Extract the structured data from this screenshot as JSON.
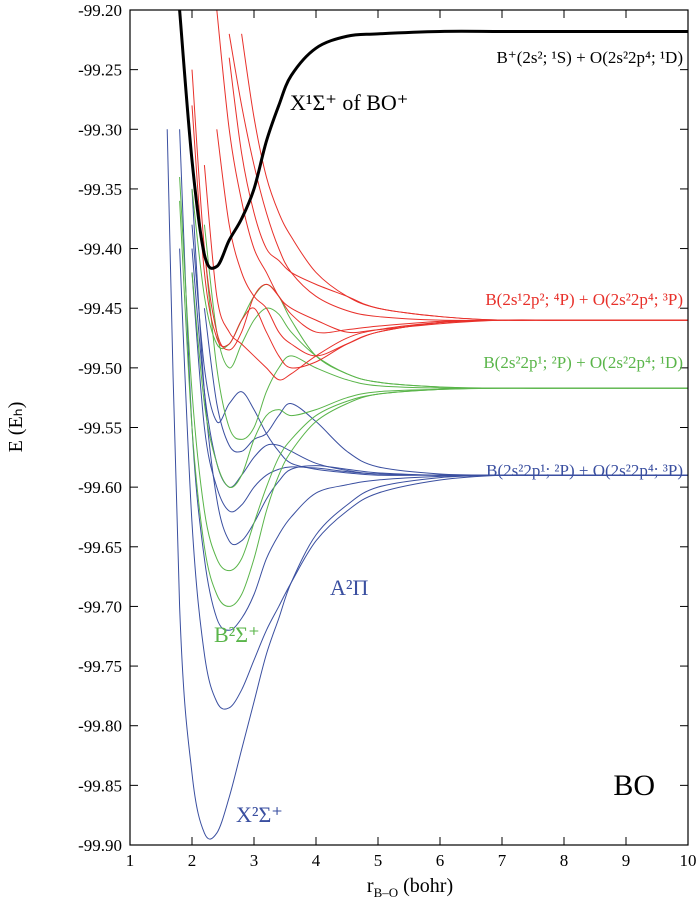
{
  "chart_data": {
    "type": "line",
    "xlabel": {
      "main": "r",
      "sub": "B–O",
      "unit": "(bohr)"
    },
    "ylabel": "E (Eₕ)",
    "xlim": [
      1,
      10
    ],
    "xticks": [
      1,
      2,
      3,
      4,
      5,
      6,
      7,
      8,
      9,
      10
    ],
    "ylim": [
      -99.9,
      -99.2
    ],
    "yticks": [
      {
        "value": -99.9,
        "label": "-99.90"
      },
      -99.85,
      {
        "value": -99.8,
        "label": "-99.80"
      },
      -99.75,
      {
        "value": -99.7,
        "label": "-99.70"
      },
      -99.65,
      {
        "value": -99.6,
        "label": "-99.60"
      },
      -99.55,
      {
        "value": -99.5,
        "label": "-99.50"
      },
      -99.45,
      {
        "value": -99.4,
        "label": "-99.40"
      },
      -99.35,
      {
        "value": -99.3,
        "label": "-99.30"
      },
      -99.25,
      {
        "value": -99.2,
        "label": "-99.20"
      }
    ],
    "x": [
      1.6,
      1.8,
      2.0,
      2.2,
      2.4,
      2.6,
      2.8,
      3.0,
      3.2,
      3.4,
      3.6,
      4.0,
      4.5,
      5,
      6,
      7,
      8,
      10
    ],
    "series": [
      {
        "color": "#3a4fa0",
        "values": [
          -99.3,
          -99.7,
          -99.84,
          -99.89,
          -99.89,
          -99.86,
          -99.82,
          -99.78,
          -99.74,
          -99.71,
          -99.68,
          -99.64,
          -99.615,
          -99.6,
          -99.592,
          -99.59,
          -99.59,
          -99.59
        ]
      },
      {
        "color": "#3a4fa0",
        "values": [
          null,
          -99.4,
          -99.63,
          -99.74,
          -99.78,
          -99.785,
          -99.77,
          -99.745,
          -99.72,
          -99.7,
          -99.68,
          -99.645,
          -99.62,
          -99.605,
          -99.594,
          -99.59,
          -99.59,
          -99.59
        ]
      },
      {
        "color": "#3a4fa0",
        "values": [
          null,
          -99.3,
          -99.55,
          -99.66,
          -99.71,
          -99.72,
          -99.71,
          -99.69,
          -99.66,
          -99.64,
          -99.625,
          -99.605,
          -99.598,
          -99.594,
          -99.591,
          -99.59,
          -99.59,
          -99.59
        ]
      },
      {
        "color": "#3a4fa0",
        "values": [
          null,
          null,
          -99.35,
          -99.52,
          -99.61,
          -99.645,
          -99.645,
          -99.63,
          -99.61,
          -99.595,
          -99.585,
          -99.582,
          -99.585,
          -99.588,
          -99.59,
          -99.59,
          -99.59,
          -99.59
        ]
      },
      {
        "color": "#3a4fa0",
        "values": [
          null,
          null,
          -99.42,
          -99.55,
          -99.6,
          -99.62,
          -99.615,
          -99.6,
          -99.59,
          -99.585,
          -99.583,
          -99.584,
          -99.587,
          -99.589,
          -99.59,
          -99.59,
          -99.59,
          -99.59
        ]
      },
      {
        "color": "#3a4fa0",
        "values": [
          null,
          null,
          -99.38,
          -99.5,
          -99.545,
          -99.53,
          -99.52,
          -99.535,
          -99.555,
          -99.57,
          -99.58,
          -99.585,
          -99.588,
          -99.59,
          -99.59,
          -99.59,
          -99.59,
          -99.59
        ]
      },
      {
        "color": "#3a4fa0",
        "values": [
          null,
          null,
          null,
          -99.45,
          -99.53,
          -99.565,
          -99.57,
          -99.56,
          -99.555,
          -99.54,
          -99.53,
          -99.545,
          -99.57,
          -99.583,
          -99.589,
          -99.59,
          -99.59,
          -99.59
        ]
      },
      {
        "color": "#3a4fa0",
        "values": [
          null,
          null,
          -99.4,
          -99.52,
          -99.58,
          -99.6,
          -99.59,
          -99.575,
          -99.565,
          -99.565,
          -99.57,
          -99.58,
          -99.586,
          -99.589,
          -99.59,
          -99.59,
          -99.59,
          -99.59
        ]
      },
      {
        "color": "#5ab54a",
        "values": [
          null,
          -99.36,
          -99.55,
          -99.65,
          -99.69,
          -99.7,
          -99.69,
          -99.66,
          -99.62,
          -99.59,
          -99.57,
          -99.545,
          -99.53,
          -99.522,
          -99.518,
          -99.517,
          -99.517,
          -99.517
        ]
      },
      {
        "color": "#5ab54a",
        "values": [
          null,
          -99.34,
          -99.52,
          -99.62,
          -99.66,
          -99.67,
          -99.66,
          -99.63,
          -99.6,
          -99.575,
          -99.56,
          -99.54,
          -99.528,
          -99.522,
          -99.518,
          -99.517,
          -99.517,
          -99.517
        ]
      },
      {
        "color": "#5ab54a",
        "values": [
          null,
          null,
          -99.42,
          -99.53,
          -99.58,
          -99.6,
          -99.59,
          -99.56,
          -99.54,
          -99.535,
          -99.54,
          -99.535,
          -99.525,
          -99.52,
          -99.518,
          -99.517,
          -99.517,
          -99.517
        ]
      },
      {
        "color": "#5ab54a",
        "values": [
          null,
          null,
          -99.35,
          -99.44,
          -99.48,
          -99.48,
          -99.46,
          -99.44,
          -99.43,
          -99.44,
          -99.46,
          -99.49,
          -99.505,
          -99.512,
          -99.516,
          -99.517,
          -99.517,
          -99.517
        ]
      },
      {
        "color": "#5ab54a",
        "values": [
          null,
          null,
          null,
          -99.4,
          -99.5,
          -99.55,
          -99.56,
          -99.55,
          -99.52,
          -99.5,
          -99.49,
          -99.5,
          -99.51,
          -99.515,
          -99.517,
          -99.517,
          -99.517,
          -99.517
        ]
      },
      {
        "color": "#5ab54a",
        "values": [
          null,
          null,
          null,
          -99.38,
          -99.47,
          -99.5,
          -99.48,
          -99.46,
          -99.45,
          -99.455,
          -99.47,
          -99.49,
          -99.505,
          -99.512,
          -99.516,
          -99.517,
          -99.517,
          -99.517
        ]
      },
      {
        "color": "#e8302a",
        "values": [
          null,
          null,
          -99.25,
          -99.4,
          -99.47,
          -99.485,
          -99.47,
          -99.44,
          -99.43,
          -99.44,
          -99.455,
          -99.47,
          -99.468,
          -99.465,
          -99.461,
          -99.46,
          -99.46,
          -99.46
        ]
      },
      {
        "color": "#e8302a",
        "values": [
          null,
          null,
          -99.28,
          -99.42,
          -99.475,
          -99.48,
          -99.46,
          -99.45,
          -99.47,
          -99.49,
          -99.5,
          -99.495,
          -99.48,
          -99.47,
          -99.462,
          -99.46,
          -99.46,
          -99.46
        ]
      },
      {
        "color": "#e8302a",
        "values": [
          null,
          null,
          null,
          null,
          null,
          -99.22,
          -99.28,
          -99.33,
          -99.37,
          -99.4,
          -99.42,
          -99.44,
          -99.452,
          -99.457,
          -99.46,
          -99.46,
          -99.46,
          -99.46
        ]
      },
      {
        "color": "#e8302a",
        "values": [
          null,
          null,
          null,
          null,
          null,
          null,
          -99.22,
          -99.29,
          -99.34,
          -99.37,
          -99.39,
          -99.42,
          -99.44,
          -99.45,
          -99.457,
          -99.46,
          -99.46,
          -99.46
        ]
      },
      {
        "color": "#e8302a",
        "values": [
          null,
          null,
          null,
          null,
          -99.2,
          -99.3,
          -99.36,
          -99.4,
          -99.42,
          -99.44,
          -99.45,
          -99.46,
          -99.47,
          -99.468,
          -99.463,
          -99.46,
          -99.46,
          -99.46
        ]
      },
      {
        "color": "#e8302a",
        "values": [
          null,
          null,
          null,
          -99.33,
          -99.44,
          -99.47,
          -99.48,
          -99.49,
          -99.5,
          -99.51,
          -99.505,
          -99.49,
          -99.475,
          -99.468,
          -99.462,
          -99.46,
          -99.46,
          -99.46
        ]
      },
      {
        "color": "#e8302a",
        "values": [
          null,
          null,
          null,
          null,
          -99.3,
          -99.38,
          -99.42,
          -99.44,
          -99.45,
          -99.47,
          -99.48,
          -99.49,
          -99.48,
          -99.47,
          -99.462,
          -99.46,
          -99.46,
          -99.46
        ]
      },
      {
        "color": "#e8302a",
        "values": [
          null,
          null,
          null,
          null,
          null,
          -99.24,
          -99.32,
          -99.37,
          -99.4,
          -99.41,
          -99.42,
          -99.43,
          -99.44,
          -99.45,
          -99.457,
          -99.46,
          -99.46,
          -99.46
        ]
      },
      {
        "color": "#000000",
        "width": 3,
        "values": [
          null,
          -99.2,
          -99.326,
          -99.405,
          -99.415,
          -99.393,
          -99.375,
          -99.35,
          -99.31,
          -99.28,
          -99.255,
          -99.232,
          -99.222,
          -99.22,
          -99.218,
          -99.218,
          -99.218,
          -99.218
        ]
      }
    ],
    "annotations": [
      {
        "text": "B⁺(2s²; ¹S) + O(2s²2p⁴; ¹D)",
        "color": "#000000"
      },
      {
        "text": "X¹Σ⁺ of BO⁺",
        "color": "#000000"
      },
      {
        "text": "B(2s¹2p²; ⁴P) + O(2s²2p⁴; ³P)",
        "color": "#e8302a"
      },
      {
        "text": "B(2s²2p¹; ²P) + O(2s²2p⁴; ¹D)",
        "color": "#5ab54a"
      },
      {
        "text": "B(2s²2p¹; ²P) + O(2s²2p⁴; ³P)",
        "color": "#3a4fa0"
      },
      {
        "text": "A²Π",
        "color": "#3a4fa0"
      },
      {
        "text": "B²Σ⁺",
        "color": "#5ab54a"
      },
      {
        "text": "X²Σ⁺",
        "color": "#3a4fa0"
      },
      {
        "text": "BO",
        "color": "#000000"
      }
    ]
  }
}
